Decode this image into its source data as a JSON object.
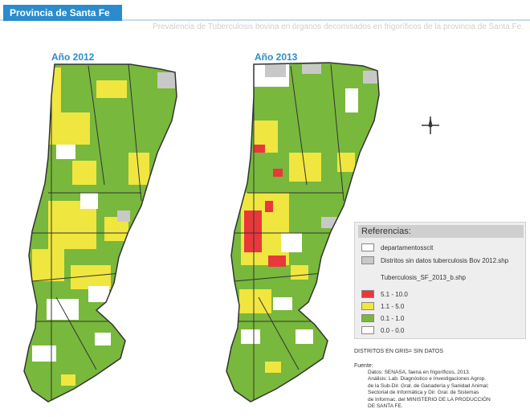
{
  "header": {
    "title": "Provincia de Santa Fe",
    "subtitle": "Prevalencia de Tuberculosis bovina en órganos decomisados en frigoríficos de la provincia de Santa Fe."
  },
  "maps": [
    {
      "label": "Año 2012"
    },
    {
      "label": "Año 2013"
    }
  ],
  "legend": {
    "title": "Referencias:",
    "items": [
      {
        "label": "departamentosscit",
        "color": "#ffffff"
      },
      {
        "label": "Distritos sin datos tuberculosis Bov 2012.shp",
        "color": "#c8c8c8"
      }
    ],
    "layer_label": "Tuberculosis_SF_2013_b.shp",
    "classes": [
      {
        "label": "5.1 - 10.0",
        "color": "#e8383a"
      },
      {
        "label": "1.1 - 5.0",
        "color": "#f0e640"
      },
      {
        "label": "0.1 - 1.0",
        "color": "#78b83c"
      },
      {
        "label": "0.0 - 0.0",
        "color": "#ffffff"
      }
    ]
  },
  "notes": {
    "gris": "DISTRITOS EN GRIS= SIN DATOS",
    "fuente_label": "Fuente:",
    "fuente_lines": [
      "Datos: SENASA, faena en frigoríficos, 2013.",
      "Análisis: Lab. Diagnóstico e Investigaciones Agrop.",
      "de la Sub-Dir. Gral. de Ganadería y Sanidad Animal;",
      "Sectorial de Informática y Dir. Gral. de Sistemas",
      "de Informac. del MINISTERIO DE LA PRODUCCIÓN",
      "DE SANTA FE."
    ]
  }
}
